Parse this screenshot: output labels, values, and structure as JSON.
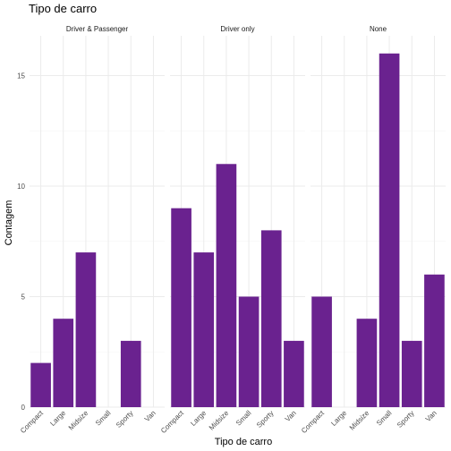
{
  "chart_data": {
    "type": "bar",
    "title": "Tipo de carro",
    "xlabel": "Tipo de carro",
    "ylabel": "Contagem",
    "categories": [
      "Compact",
      "Large",
      "Midsize",
      "Small",
      "Sporty",
      "Van"
    ],
    "y_ticks": [
      0,
      5,
      10,
      15
    ],
    "ylim": [
      0,
      16.8
    ],
    "grid": true,
    "bar_color": "#6a228f",
    "facets": [
      {
        "name": "Driver & Passenger",
        "values": [
          2,
          4,
          7,
          0,
          3,
          0
        ]
      },
      {
        "name": "Driver only",
        "values": [
          9,
          7,
          11,
          5,
          8,
          3
        ]
      },
      {
        "name": "None",
        "values": [
          5,
          0,
          4,
          16,
          3,
          6
        ]
      }
    ]
  }
}
